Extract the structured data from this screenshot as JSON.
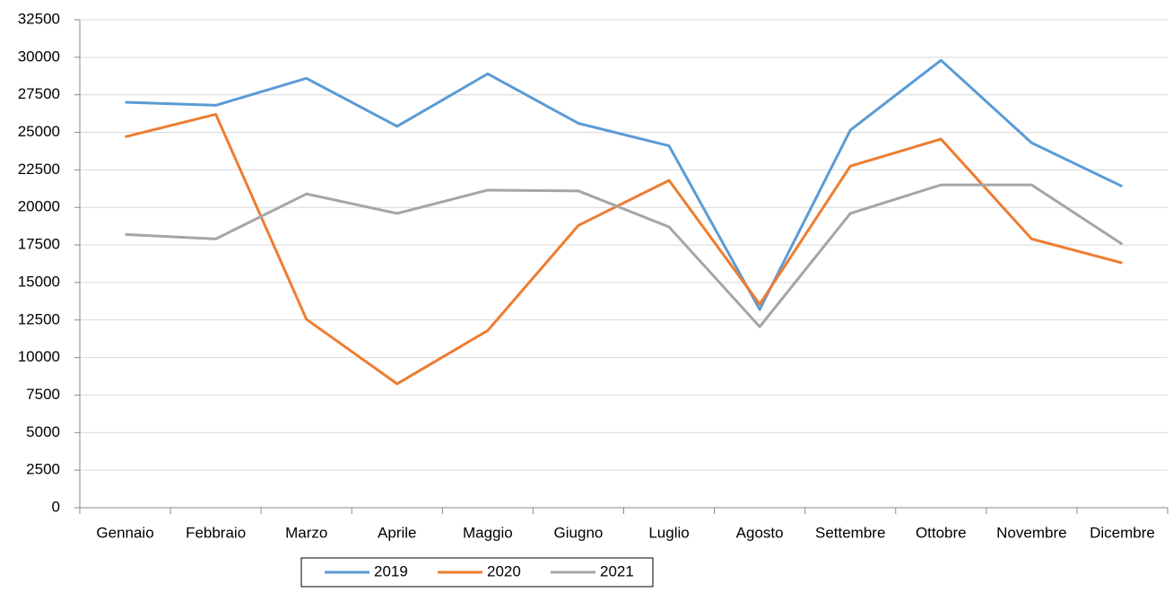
{
  "chart_data": {
    "type": "line",
    "categories": [
      "Gennaio",
      "Febbraio",
      "Marzo",
      "Aprile",
      "Maggio",
      "Giugno",
      "Luglio",
      "Agosto",
      "Settembre",
      "Ottobre",
      "Novembre",
      "Dicembre"
    ],
    "series": [
      {
        "name": "2019",
        "color": "#5b9bd5",
        "values": [
          27000,
          26800,
          28600,
          25400,
          28900,
          25600,
          24100,
          13200,
          25150,
          29800,
          24300,
          21400
        ]
      },
      {
        "name": "2020",
        "color": "#ed7d31",
        "values": [
          24700,
          26200,
          12550,
          8250,
          11800,
          18800,
          21800,
          13550,
          22750,
          24550,
          17900,
          16300
        ]
      },
      {
        "name": "2021",
        "color": "#a5a5a5",
        "values": [
          18200,
          17900,
          20900,
          19600,
          21150,
          21100,
          18700,
          12050,
          19600,
          21500,
          21500,
          17550
        ]
      }
    ],
    "ylim": [
      0,
      32500
    ],
    "yticks": [
      0,
      2500,
      5000,
      7500,
      10000,
      12500,
      15000,
      17500,
      20000,
      22500,
      25000,
      27500,
      30000,
      32500
    ],
    "grid": true,
    "legend": "bottom"
  }
}
